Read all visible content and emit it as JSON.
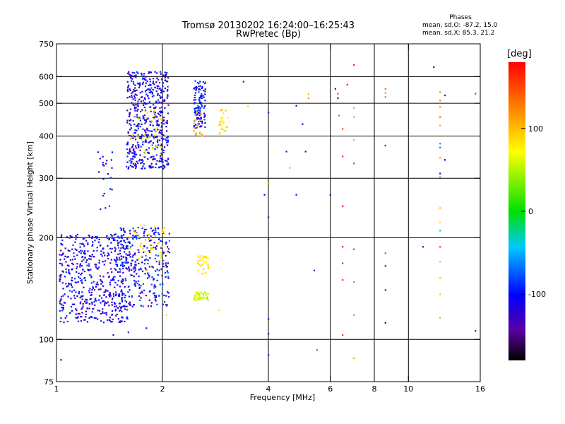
{
  "chart_data": {
    "type": "scatter",
    "title": "Tromsø 20130202 16:24:00–16:25:43",
    "subtitle": "RwPretec (Bp)",
    "xlabel": "Frequency [MHz]",
    "ylabel": "Stationary phase Virtual Height [km]",
    "x_scale": "log",
    "y_scale": "log",
    "xlim": [
      1,
      16
    ],
    "ylim": [
      75,
      750
    ],
    "x_ticks": [
      1,
      2,
      4,
      6,
      8,
      10,
      16
    ],
    "y_ticks": [
      75,
      100,
      200,
      300,
      400,
      500,
      600,
      750
    ],
    "x_gridlines": [
      2,
      4,
      6,
      8,
      10
    ],
    "y_gridlines": [
      100,
      200,
      300,
      400,
      500,
      600
    ],
    "grid": true,
    "phase_stats": {
      "heading": "Phases",
      "line_o": "mean, sd,O: -87.2, 15.0",
      "line_x": "mean, sd,X:  85.3, 21.2"
    },
    "colorbar": {
      "label": "[deg]",
      "range": [
        -180,
        180
      ],
      "ticks": [
        100,
        0,
        -100
      ]
    },
    "clusters": [
      {
        "xmin": 1.02,
        "xmax": 1.6,
        "ymin": 112,
        "ymax": 205,
        "n": 520,
        "pmin": -140,
        "pmax": -80
      },
      {
        "xmin": 1.5,
        "xmax": 2.1,
        "ymin": 125,
        "ymax": 215,
        "n": 300,
        "pmin": -140,
        "pmax": -70
      },
      {
        "xmin": 1.6,
        "xmax": 2.05,
        "ymin": 160,
        "ymax": 220,
        "n": 45,
        "pmin": 70,
        "pmax": 110
      },
      {
        "xmin": 1.58,
        "xmax": 2.08,
        "ymin": 320,
        "ymax": 620,
        "n": 520,
        "pmin": -140,
        "pmax": -80
      },
      {
        "xmin": 1.62,
        "xmax": 2.0,
        "ymin": 340,
        "ymax": 480,
        "n": 40,
        "pmin": 60,
        "pmax": 110
      },
      {
        "xmin": 2.45,
        "xmax": 2.65,
        "ymin": 420,
        "ymax": 590,
        "n": 110,
        "pmin": -130,
        "pmax": -70
      },
      {
        "xmin": 2.45,
        "xmax": 2.6,
        "ymin": 400,
        "ymax": 470,
        "n": 18,
        "pmin": 90,
        "pmax": 120
      },
      {
        "xmin": 2.45,
        "xmax": 2.7,
        "ymin": 130,
        "ymax": 138,
        "n": 50,
        "pmin": 40,
        "pmax": 75
      },
      {
        "xmin": 2.52,
        "xmax": 2.7,
        "ymin": 155,
        "ymax": 178,
        "n": 30,
        "pmin": 70,
        "pmax": 100
      },
      {
        "xmin": 2.9,
        "xmax": 3.1,
        "ymin": 405,
        "ymax": 480,
        "n": 25,
        "pmin": 70,
        "pmax": 100
      },
      {
        "xmin": 1.3,
        "xmax": 1.45,
        "ymin": 240,
        "ymax": 370,
        "n": 22,
        "pmin": -130,
        "pmax": -80
      }
    ],
    "points": [
      [
        1.03,
        87,
        -110
      ],
      [
        1.45,
        103,
        -120
      ],
      [
        1.6,
        105,
        -90
      ],
      [
        1.8,
        108,
        -120
      ],
      [
        2.05,
        118,
        60
      ],
      [
        2.9,
        122,
        60
      ],
      [
        3.4,
        580,
        -110
      ],
      [
        3.5,
        490,
        90
      ],
      [
        4.0,
        470,
        -120
      ],
      [
        4.0,
        230,
        -130
      ],
      [
        4.0,
        198,
        -130
      ],
      [
        4.0,
        115,
        -120
      ],
      [
        4.0,
        104,
        -110
      ],
      [
        4.0,
        96,
        -60
      ],
      [
        4.0,
        90,
        -120
      ],
      [
        4.0,
        290,
        20
      ],
      [
        3.9,
        268,
        -130
      ],
      [
        4.5,
        360,
        -130
      ],
      [
        4.6,
        322,
        110
      ],
      [
        4.8,
        268,
        -110
      ],
      [
        4.8,
        492,
        -110
      ],
      [
        5.0,
        434,
        -100
      ],
      [
        5.1,
        360,
        -110
      ],
      [
        5.2,
        532,
        110
      ],
      [
        5.2,
        518,
        120
      ],
      [
        5.4,
        160,
        -110
      ],
      [
        5.5,
        93,
        -60
      ],
      [
        6.0,
        268,
        -140
      ],
      [
        6.2,
        552,
        -130
      ],
      [
        6.3,
        518,
        -130
      ],
      [
        6.3,
        534,
        150
      ],
      [
        6.35,
        460,
        140
      ],
      [
        6.5,
        420,
        150
      ],
      [
        6.5,
        348,
        160
      ],
      [
        6.5,
        248,
        180
      ],
      [
        6.5,
        188,
        170
      ],
      [
        6.5,
        168,
        170
      ],
      [
        6.5,
        150,
        160
      ],
      [
        6.5,
        103,
        160
      ],
      [
        6.7,
        568,
        170
      ],
      [
        7.0,
        650,
        170
      ],
      [
        7.0,
        485,
        120
      ],
      [
        7.0,
        455,
        110
      ],
      [
        7.0,
        390,
        110
      ],
      [
        7.0,
        332,
        160
      ],
      [
        7.0,
        185,
        160
      ],
      [
        7.0,
        148,
        130
      ],
      [
        7.0,
        118,
        120
      ],
      [
        7.0,
        88,
        110
      ],
      [
        8.6,
        552,
        140
      ],
      [
        8.6,
        537,
        120
      ],
      [
        8.6,
        522,
        -30
      ],
      [
        8.6,
        375,
        -140
      ],
      [
        8.6,
        180,
        -60
      ],
      [
        8.6,
        165,
        -140
      ],
      [
        8.6,
        140,
        -130
      ],
      [
        8.6,
        112,
        -120
      ],
      [
        11.0,
        188,
        -130
      ],
      [
        11.8,
        640,
        -130
      ],
      [
        12.3,
        488,
        120
      ],
      [
        12.3,
        455,
        140
      ],
      [
        12.3,
        430,
        110
      ],
      [
        12.3,
        400,
        130
      ],
      [
        12.3,
        380,
        -60
      ],
      [
        12.3,
        370,
        -70
      ],
      [
        12.3,
        345,
        110
      ],
      [
        12.3,
        310,
        -150
      ],
      [
        12.3,
        302,
        -60
      ],
      [
        12.3,
        298,
        80
      ],
      [
        12.3,
        245,
        100
      ],
      [
        12.3,
        222,
        90
      ],
      [
        12.3,
        210,
        -20
      ],
      [
        12.3,
        188,
        160
      ],
      [
        12.3,
        170,
        100
      ],
      [
        12.3,
        152,
        100
      ],
      [
        12.3,
        136,
        100
      ],
      [
        12.3,
        116,
        110
      ],
      [
        12.3,
        540,
        120
      ],
      [
        12.3,
        510,
        130
      ],
      [
        12.7,
        528,
        -140
      ],
      [
        12.7,
        340,
        -110
      ],
      [
        15.5,
        534,
        160
      ],
      [
        15.5,
        106,
        -120
      ]
    ]
  }
}
